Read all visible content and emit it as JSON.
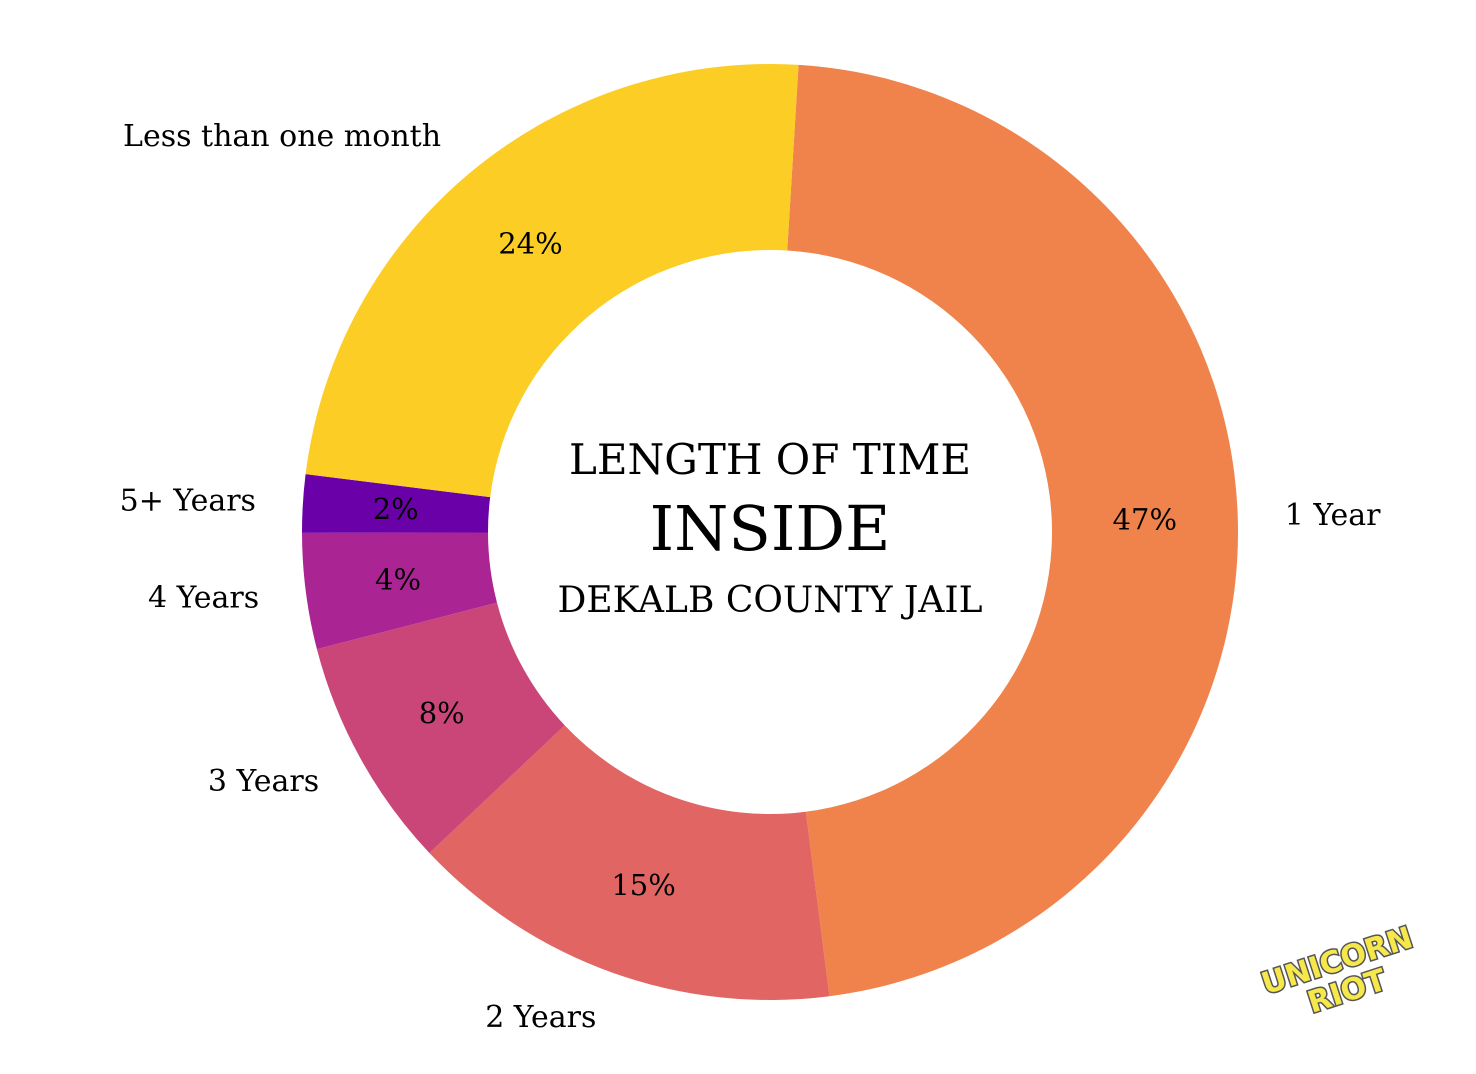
{
  "chart_data": {
    "type": "pie",
    "donut": true,
    "center_title": [
      "LENGTH OF TIME",
      "INSIDE",
      "DEKALB COUNTY JAIL"
    ],
    "categories": [
      "1 Year",
      "2 Years",
      "3 Years",
      "4 Years",
      "5+ Years",
      "Less than one month"
    ],
    "values": [
      47,
      15,
      8,
      4,
      2,
      24
    ],
    "labels": [
      "47%",
      "15%",
      "8%",
      "4%",
      "2%",
      "24%"
    ],
    "colors": [
      "#f0834b",
      "#e06563",
      "#cb4678",
      "#ab2494",
      "#6a00a8",
      "#fbcd25"
    ],
    "legend": "none"
  },
  "logo": {
    "line1": "UNICORN",
    "line2": "RIOT"
  }
}
